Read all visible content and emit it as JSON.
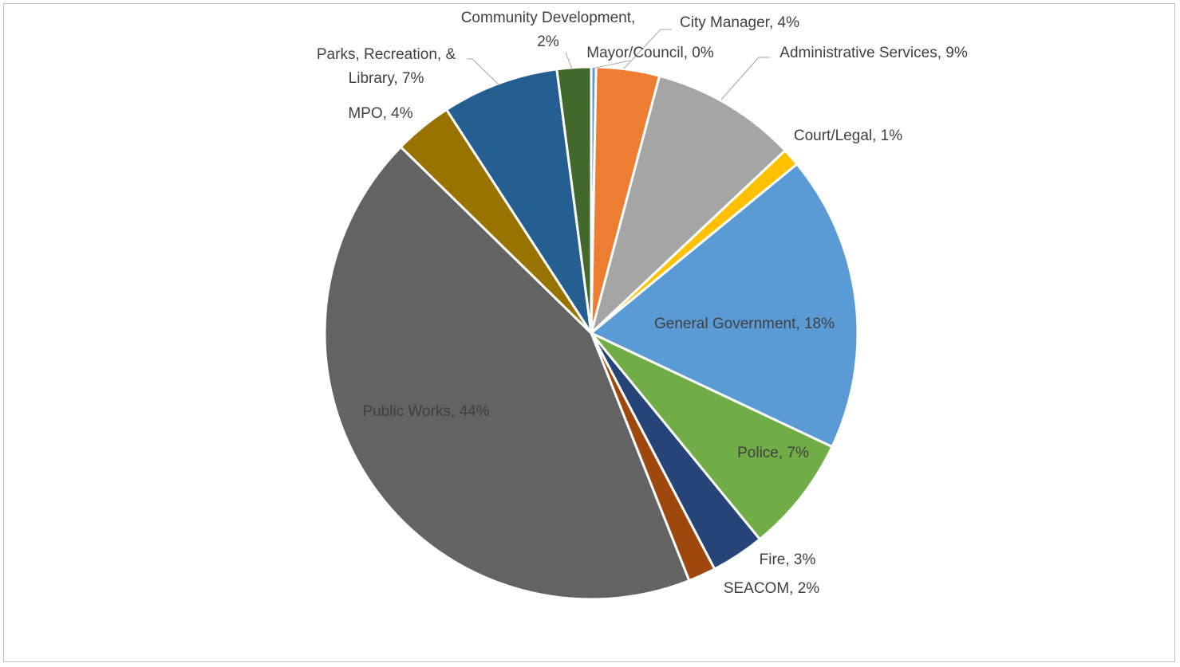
{
  "chart_data": {
    "type": "pie",
    "title": "",
    "slices": [
      {
        "label": "Mayor/Council, 0%",
        "name": "Mayor/Council",
        "value": 0.3,
        "color": "#5b9bd5"
      },
      {
        "label": "City Manager, 4%",
        "name": "City Manager",
        "value": 3.9,
        "color": "#ed7d31"
      },
      {
        "label": "Administrative Services, 9%",
        "name": "Administrative Services",
        "value": 9,
        "color": "#a5a5a5"
      },
      {
        "label": "Court/Legal, 1%",
        "name": "Court/Legal",
        "value": 1.1,
        "color": "#ffc000"
      },
      {
        "label": "General Government, 18%",
        "name": "General Government",
        "value": 18.3,
        "color": "#5b9bd5"
      },
      {
        "label": "Police, 7%",
        "name": "Police",
        "value": 7.2,
        "color": "#70ad47"
      },
      {
        "label": "Fire, 3%",
        "name": "Fire",
        "value": 3.3,
        "color": "#264478"
      },
      {
        "label": "SEACOM, 2%",
        "name": "SEACOM",
        "value": 1.7,
        "color": "#9e480e"
      },
      {
        "label": "Public Works, 44%",
        "name": "Public Works",
        "value": 44.1,
        "color": "#636363"
      },
      {
        "label": "MPO, 4%",
        "name": "MPO",
        "value": 3.6,
        "color": "#997300"
      },
      {
        "label": "Parks, Recreation, & Library, 7%",
        "name": "Parks, Recreation, & Library",
        "value": 7.2,
        "color": "#255e91"
      },
      {
        "label": "Community Development, 2%",
        "name": "Community Development",
        "value": 2.1,
        "color": "#43682b"
      }
    ]
  }
}
